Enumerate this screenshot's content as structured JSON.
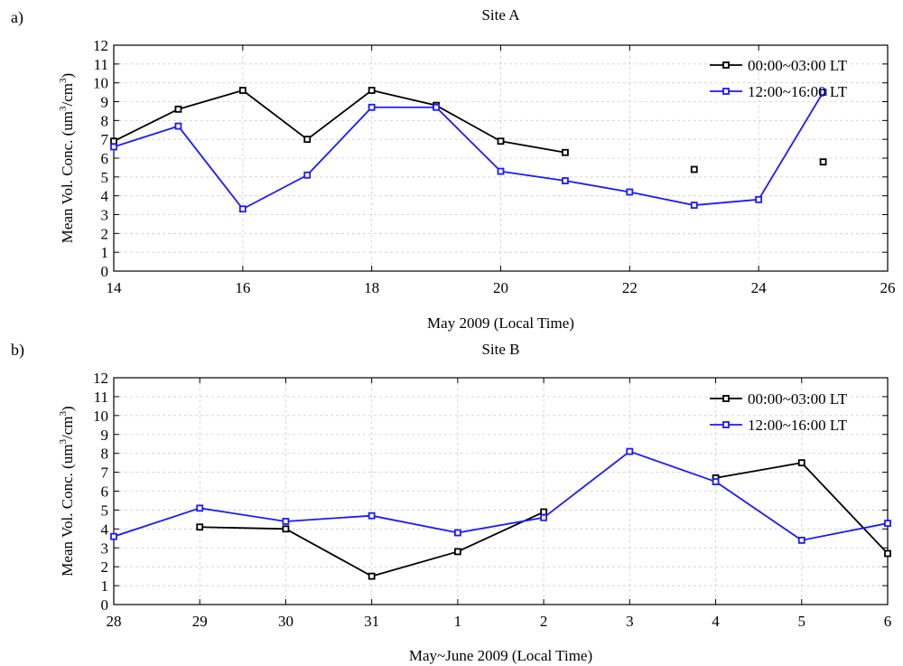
{
  "chart_data": [
    {
      "panel_label": "a)",
      "type": "line",
      "title": "Site A",
      "xlabel": "May 2009 (Local Time)",
      "ylabel_parts": [
        "Mean Vol. Conc. (um",
        "3",
        "/cm",
        "3",
        ")"
      ],
      "xlim": [
        14,
        26
      ],
      "ylim": [
        0,
        12
      ],
      "xticks": [
        14,
        16,
        18,
        20,
        22,
        24,
        26
      ],
      "xtick_labels": [
        "14",
        "16",
        "18",
        "20",
        "22",
        "24",
        "26"
      ],
      "yticks": [
        0,
        1,
        2,
        3,
        4,
        5,
        6,
        7,
        8,
        9,
        10,
        11,
        12
      ],
      "ytick_labels": [
        "0",
        "1",
        "2",
        "3",
        "4",
        "5",
        "6",
        "7",
        "8",
        "9",
        "10",
        "11",
        "12"
      ],
      "grid": true,
      "legend_position": "top-right",
      "series": [
        {
          "name": "00:00~03:00 LT",
          "color": "#000000",
          "x": [
            14,
            15,
            16,
            17,
            18,
            19,
            20,
            21,
            22,
            23,
            24,
            25
          ],
          "y": [
            6.9,
            8.6,
            9.6,
            7.0,
            9.6,
            8.8,
            6.9,
            6.3,
            null,
            5.4,
            null,
            5.8
          ]
        },
        {
          "name": "12:00~16:00 LT",
          "color": "#1a1aff",
          "x": [
            14,
            15,
            16,
            17,
            18,
            19,
            20,
            21,
            22,
            23,
            24,
            25
          ],
          "y": [
            6.6,
            7.7,
            3.3,
            5.1,
            8.7,
            8.7,
            5.3,
            4.8,
            4.2,
            3.5,
            3.8,
            9.5
          ]
        }
      ]
    },
    {
      "panel_label": "b)",
      "type": "line",
      "title": "Site B",
      "xlabel": "May~June 2009 (Local Time)",
      "ylabel_parts": [
        "Mean Vol. Conc. (um",
        "3",
        "/cm",
        "3",
        ")"
      ],
      "categories": [
        "28",
        "29",
        "30",
        "31",
        "1",
        "2",
        "3",
        "4",
        "5",
        "6"
      ],
      "ylim": [
        0,
        12
      ],
      "yticks": [
        0,
        1,
        2,
        3,
        4,
        5,
        6,
        7,
        8,
        9,
        10,
        11,
        12
      ],
      "ytick_labels": [
        "0",
        "1",
        "2",
        "3",
        "4",
        "5",
        "6",
        "7",
        "8",
        "9",
        "10",
        "11",
        "12"
      ],
      "grid": true,
      "legend_position": "top-right",
      "series": [
        {
          "name": "00:00~03:00 LT",
          "color": "#000000",
          "values": [
            null,
            4.1,
            4.0,
            1.5,
            2.8,
            4.9,
            null,
            6.7,
            7.5,
            2.7
          ]
        },
        {
          "name": "12:00~16:00 LT",
          "color": "#1a1aff",
          "values": [
            3.6,
            5.1,
            4.4,
            4.7,
            3.8,
            4.6,
            8.1,
            6.5,
            3.4,
            4.3
          ]
        }
      ]
    }
  ]
}
